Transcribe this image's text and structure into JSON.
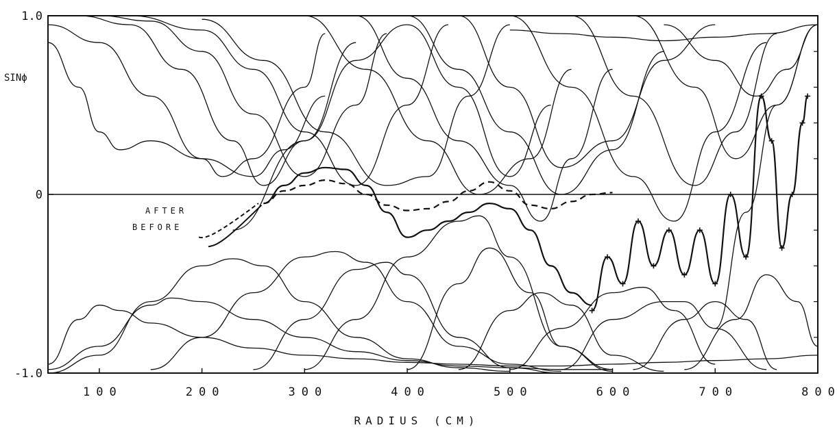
{
  "chart_data": {
    "type": "line",
    "title": "",
    "xlabel": "RADIUS (CM)",
    "ylabel": "SINϕ",
    "xlim": [
      50,
      800
    ],
    "ylim": [
      -1.0,
      1.0
    ],
    "xticks": [
      100,
      200,
      300,
      400,
      500,
      600,
      700,
      800
    ],
    "xtick_labels": [
      "100",
      "200",
      "300",
      "400",
      "500",
      "600",
      "700",
      "800"
    ],
    "yticks": [
      1.0,
      0,
      -1.0
    ],
    "ytick_labels": [
      "1.0",
      "0",
      "-1.0"
    ],
    "grid": false,
    "legend": "none",
    "annotations": [
      {
        "text": "AFTER",
        "x": 225,
        "y": -0.22
      },
      {
        "text": "BEFORE",
        "x": 230,
        "y": -0.3
      }
    ],
    "series": [
      {
        "style": "dashed",
        "label": "AFTER",
        "x": [
          260,
          280,
          300,
          320,
          340,
          360,
          380,
          400,
          420,
          440,
          460,
          480,
          500,
          520,
          540,
          560,
          580,
          600
        ],
        "y": [
          -0.05,
          0.02,
          0.05,
          0.08,
          0.06,
          0.0,
          -0.06,
          -0.09,
          -0.08,
          -0.04,
          0.02,
          0.07,
          0.02,
          -0.06,
          -0.08,
          -0.04,
          0.0,
          0.01
        ]
      },
      {
        "style": "solid",
        "label": "BEFORE",
        "x": [
          260,
          280,
          300,
          320,
          340,
          360,
          380,
          400,
          420,
          440,
          460,
          480,
          500,
          520,
          540,
          560,
          580
        ],
        "y": [
          -0.05,
          0.05,
          0.12,
          0.15,
          0.14,
          0.05,
          -0.1,
          -0.24,
          -0.2,
          -0.15,
          -0.1,
          -0.05,
          -0.08,
          -0.2,
          -0.4,
          -0.55,
          -0.62
        ]
      },
      {
        "style": "marked",
        "x": [
          580,
          595,
          610,
          625,
          640,
          655,
          670,
          685,
          700,
          715,
          730,
          745,
          755,
          765,
          775,
          785,
          790
        ],
        "y": [
          -0.65,
          -0.35,
          -0.5,
          -0.15,
          -0.4,
          -0.2,
          -0.45,
          -0.2,
          -0.5,
          0.0,
          -0.35,
          0.55,
          0.3,
          -0.3,
          0.0,
          0.4,
          0.55
        ]
      },
      {
        "style": "solid",
        "x": [
          50,
          80,
          100,
          120,
          150,
          200,
          250,
          300,
          350,
          400,
          450,
          500,
          550,
          600,
          650,
          700,
          750,
          800
        ],
        "y": [
          -0.95,
          -0.7,
          -0.62,
          -0.65,
          -0.72,
          -0.8,
          -0.86,
          -0.9,
          -0.92,
          -0.94,
          -0.95,
          -0.96,
          -0.96,
          -0.95,
          -0.94,
          -0.93,
          -0.92,
          -0.9
        ]
      },
      {
        "style": "solid",
        "x": [
          50,
          100,
          150,
          170,
          200,
          250,
          300,
          350,
          400,
          450,
          500,
          550,
          600
        ],
        "y": [
          -0.98,
          -0.85,
          -0.62,
          -0.58,
          -0.6,
          -0.7,
          -0.8,
          -0.88,
          -0.93,
          -0.96,
          -0.97,
          -0.98,
          -0.98
        ]
      },
      {
        "style": "solid",
        "x": [
          50,
          100,
          150,
          200,
          230,
          260,
          300,
          350,
          400,
          450,
          500
        ],
        "y": [
          -1.0,
          -0.9,
          -0.6,
          -0.4,
          -0.36,
          -0.4,
          -0.6,
          -0.8,
          -0.92,
          -0.97,
          -0.99
        ]
      },
      {
        "style": "solid",
        "x": [
          150,
          200,
          250,
          300,
          330,
          360,
          400,
          450,
          500,
          550
        ],
        "y": [
          -0.98,
          -0.8,
          -0.55,
          -0.35,
          -0.32,
          -0.38,
          -0.6,
          -0.85,
          -0.95,
          -0.99
        ]
      },
      {
        "style": "solid",
        "x": [
          250,
          300,
          350,
          380,
          400,
          450,
          500,
          550
        ],
        "y": [
          -0.98,
          -0.7,
          -0.42,
          -0.38,
          -0.45,
          -0.8,
          -0.97,
          -1.0
        ]
      },
      {
        "style": "solid",
        "x": [
          300,
          350,
          400,
          450,
          470,
          500,
          550,
          600
        ],
        "y": [
          -0.98,
          -0.7,
          -0.35,
          -0.15,
          -0.12,
          -0.35,
          -0.85,
          -0.99
        ]
      },
      {
        "style": "solid",
        "x": [
          400,
          450,
          480,
          520,
          550,
          600
        ],
        "y": [
          -0.98,
          -0.5,
          -0.3,
          -0.55,
          -0.85,
          -0.98
        ]
      },
      {
        "style": "solid",
        "x": [
          450,
          500,
          530,
          560,
          600,
          650
        ],
        "y": [
          -0.98,
          -0.65,
          -0.55,
          -0.62,
          -0.9,
          -0.99
        ]
      },
      {
        "style": "solid",
        "x": [
          500,
          550,
          600,
          630,
          660,
          700
        ],
        "y": [
          -0.98,
          -0.75,
          -0.55,
          -0.52,
          -0.65,
          -0.95
        ]
      },
      {
        "style": "solid",
        "x": [
          550,
          600,
          650,
          670,
          700,
          750
        ],
        "y": [
          -0.98,
          -0.7,
          -0.6,
          -0.6,
          -0.75,
          -0.98
        ]
      },
      {
        "style": "solid",
        "x": [
          620,
          670,
          700,
          730,
          760
        ],
        "y": [
          -0.98,
          -0.7,
          -0.6,
          -0.7,
          -0.98
        ]
      },
      {
        "style": "solid",
        "x": [
          670,
          720,
          750,
          780,
          800
        ],
        "y": [
          -0.98,
          -0.7,
          -0.45,
          -0.6,
          -0.85
        ]
      },
      {
        "style": "solid",
        "x": [
          50,
          80,
          100,
          120,
          150,
          200,
          250,
          280,
          320
        ],
        "y": [
          0.85,
          0.6,
          0.35,
          0.25,
          0.3,
          0.2,
          0.1,
          0.25,
          0.55
        ]
      },
      {
        "style": "solid",
        "x": [
          50,
          100,
          150,
          200,
          220,
          250,
          300,
          320
        ],
        "y": [
          0.95,
          0.85,
          0.55,
          0.2,
          0.1,
          0.2,
          0.6,
          0.9
        ]
      },
      {
        "style": "solid",
        "x": [
          80,
          130,
          180,
          230,
          260,
          300,
          350
        ],
        "y": [
          1.0,
          0.95,
          0.7,
          0.3,
          0.05,
          0.3,
          0.85
        ]
      },
      {
        "style": "solid",
        "x": [
          100,
          150,
          200,
          250,
          300,
          350,
          380
        ],
        "y": [
          1.0,
          0.97,
          0.8,
          0.45,
          0.1,
          0.5,
          0.9
        ]
      },
      {
        "style": "solid",
        "x": [
          130,
          200,
          250,
          300,
          350,
          400,
          440
        ],
        "y": [
          1.0,
          0.92,
          0.7,
          0.35,
          0.05,
          0.5,
          0.95
        ]
      },
      {
        "style": "solid",
        "x": [
          200,
          260,
          320,
          380,
          420,
          460,
          500
        ],
        "y": [
          0.98,
          0.75,
          0.35,
          0.05,
          0.1,
          0.55,
          0.95
        ]
      },
      {
        "style": "solid",
        "x": [
          230,
          300,
          350,
          400,
          450,
          500,
          540
        ],
        "y": [
          -0.2,
          0.3,
          0.75,
          0.95,
          0.6,
          0.1,
          0.5
        ]
      },
      {
        "style": "solid",
        "x": [
          300,
          360,
          420,
          470,
          520,
          560
        ],
        "y": [
          1.0,
          0.7,
          0.3,
          0.0,
          0.2,
          0.7
        ]
      },
      {
        "style": "solid",
        "x": [
          350,
          400,
          450,
          500,
          530,
          560,
          600
        ],
        "y": [
          1.0,
          0.65,
          0.3,
          0.05,
          -0.15,
          0.2,
          0.7
        ]
      },
      {
        "style": "solid",
        "x": [
          400,
          450,
          500,
          550,
          600,
          650
        ],
        "y": [
          1.0,
          0.7,
          0.35,
          0.0,
          0.25,
          0.8
        ]
      },
      {
        "style": "solid",
        "x": [
          450,
          500,
          550,
          600,
          650,
          700
        ],
        "y": [
          1.0,
          0.6,
          0.15,
          0.3,
          0.75,
          0.95
        ]
      },
      {
        "style": "solid",
        "x": [
          500,
          560,
          620,
          660,
          700,
          750
        ],
        "y": [
          1.0,
          0.6,
          0.1,
          -0.15,
          0.35,
          0.85
        ]
      },
      {
        "style": "solid",
        "x": [
          560,
          620,
          680,
          720,
          760
        ],
        "y": [
          1.0,
          0.55,
          0.05,
          0.35,
          0.9
        ]
      },
      {
        "style": "solid",
        "x": [
          620,
          680,
          720,
          760,
          800
        ],
        "y": [
          1.0,
          0.6,
          0.2,
          0.5,
          0.95
        ]
      },
      {
        "style": "solid",
        "x": [
          650,
          700,
          740,
          770,
          800
        ],
        "y": [
          0.95,
          0.75,
          0.55,
          0.7,
          0.95
        ]
      },
      {
        "style": "solid",
        "x": [
          500,
          550,
          600,
          650,
          700,
          750,
          800
        ],
        "y": [
          0.92,
          0.9,
          0.88,
          0.86,
          0.88,
          0.9,
          0.95
        ]
      },
      {
        "style": "solid",
        "x": [
          700,
          730,
          760,
          800
        ],
        "y": [
          -0.75,
          -0.1,
          0.5,
          0.95
        ]
      }
    ]
  }
}
